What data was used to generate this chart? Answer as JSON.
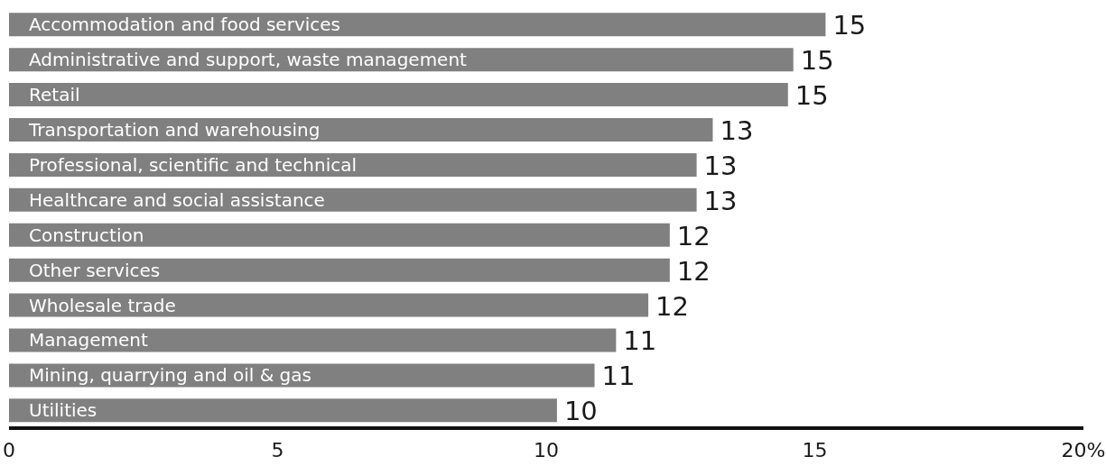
{
  "chart_data": {
    "type": "bar",
    "orientation": "horizontal",
    "categories": [
      "Accommodation and food services",
      "Administrative and support, waste management",
      "Retail",
      "Transportation and warehousing",
      "Professional, scientific and technical",
      "Healthcare and social assistance",
      "Construction",
      "Other services",
      "Wholesale trade",
      "Management",
      "Mining, quarrying and oil & gas",
      "Utilities"
    ],
    "values": [
      15.2,
      14.6,
      14.5,
      13.1,
      12.8,
      12.8,
      12.3,
      12.3,
      11.9,
      11.3,
      10.9,
      10.2
    ],
    "value_labels": [
      "15",
      "15",
      "15",
      "13",
      "13",
      "13",
      "12",
      "12",
      "12",
      "11",
      "11",
      "10"
    ],
    "color": "#808080",
    "xlim": [
      0,
      20
    ],
    "xticks": [
      0,
      5,
      10,
      15,
      {
        "value": 20,
        "label": "20%"
      }
    ],
    "grid": false,
    "legend": false
  }
}
